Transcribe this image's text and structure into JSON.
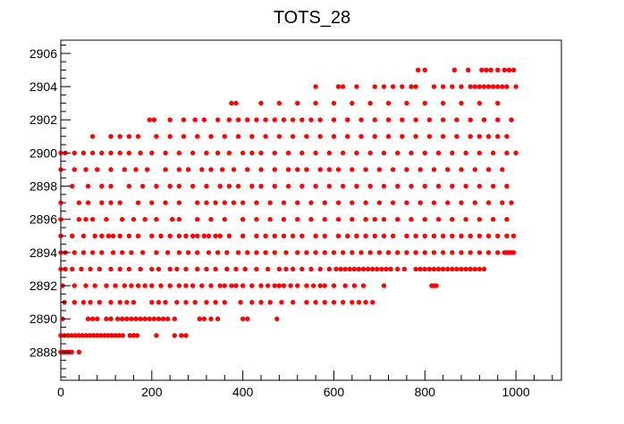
{
  "chart_data": {
    "type": "scatter",
    "title": "TOTS_28",
    "xlabel": "",
    "ylabel": "",
    "xlim": [
      0,
      1100
    ],
    "ylim": [
      2886.3,
      2906.8
    ],
    "grid": false,
    "legend": "none",
    "marker_color": "#ff0000",
    "x_ticks": [
      0,
      200,
      400,
      600,
      800,
      1000
    ],
    "x_tick_labels": [
      "0",
      "200",
      "400",
      "600",
      "800",
      "1000"
    ],
    "y_ticks": [
      2888,
      2890,
      2892,
      2894,
      2896,
      2898,
      2900,
      2902,
      2904,
      2906
    ],
    "y_tick_labels": [
      "2888",
      "2890",
      "2892",
      "2894",
      "2896",
      "2898",
      "2900",
      "2902",
      "2904",
      "2906"
    ],
    "series": [
      {
        "name": "",
        "rows": [
          {
            "y": 2888,
            "x": [
              0,
              4,
              8,
              12,
              16,
              20,
              24,
              40
            ]
          },
          {
            "y": 2889,
            "x": [
              0,
              8,
              16,
              24,
              32,
              40,
              48,
              56,
              64,
              72,
              80,
              88,
              96,
              104,
              112,
              120,
              128,
              136,
              152,
              160,
              168,
              210,
              250,
              265,
              275
            ]
          },
          {
            "y": 2890,
            "x": [
              4,
              60,
              70,
              80,
              100,
              110,
              125,
              135,
              145,
              155,
              165,
              175,
              185,
              195,
              205,
              215,
              225,
              235,
              250,
              305,
              315,
              330,
              345,
              400,
              410,
              475
            ]
          },
          {
            "y": 2891,
            "x": [
              8,
              30,
              50,
              65,
              85,
              110,
              130,
              145,
              160,
              200,
              215,
              230,
              255,
              275,
              295,
              320,
              340,
              360,
              395,
              420,
              440,
              460,
              485,
              510,
              540,
              560,
              580,
              600,
              620,
              640,
              655,
              670,
              685
            ]
          },
          {
            "y": 2892,
            "x": [
              4,
              30,
              55,
              75,
              100,
              120,
              140,
              155,
              170,
              185,
              200,
              220,
              240,
              260,
              275,
              290,
              310,
              330,
              350,
              360,
              375,
              385,
              400,
              420,
              440,
              455,
              470,
              480,
              490,
              505,
              520,
              540,
              555,
              570,
              580,
              600,
              625,
              645,
              665,
              710,
              815,
              820,
              825
            ]
          },
          {
            "y": 2893,
            "x": [
              0,
              10,
              25,
              45,
              65,
              85,
              110,
              130,
              150,
              175,
              200,
              215,
              240,
              255,
              275,
              300,
              320,
              340,
              365,
              385,
              405,
              430,
              455,
              480,
              495,
              510,
              530,
              550,
              570,
              590,
              605,
              615,
              625,
              635,
              645,
              655,
              665,
              675,
              685,
              695,
              705,
              715,
              725,
              740,
              755,
              780,
              790,
              800,
              810,
              820,
              830,
              840,
              850,
              860,
              870,
              880,
              890,
              900,
              910,
              920,
              930
            ]
          },
          {
            "y": 2894,
            "x": [
              0,
              10,
              30,
              50,
              70,
              90,
              115,
              135,
              155,
              180,
              210,
              235,
              260,
              280,
              300,
              325,
              345,
              365,
              390,
              410,
              430,
              450,
              470,
              495,
              520,
              540,
              560,
              580,
              600,
              620,
              640,
              660,
              680,
              700,
              720,
              740,
              760,
              780,
              800,
              820,
              840,
              860,
              880,
              900,
              920,
              940,
              960,
              975,
              980,
              985,
              990,
              995
            ]
          },
          {
            "y": 2895,
            "x": [
              0,
              25,
              50,
              75,
              90,
              105,
              115,
              130,
              150,
              170,
              200,
              220,
              240,
              260,
              275,
              290,
              300,
              315,
              325,
              340,
              350,
              370,
              400,
              430,
              450,
              470,
              490,
              510,
              530,
              560,
              580,
              610,
              630,
              650,
              670,
              690,
              710,
              730,
              760,
              780,
              800,
              820,
              840,
              860,
              880,
              900,
              920,
              940,
              960,
              980,
              995
            ]
          },
          {
            "y": 2896,
            "x": [
              0,
              40,
              55,
              70,
              100,
              135,
              160,
              185,
              210,
              245,
              260,
              300,
              330,
              360,
              400,
              430,
              460,
              490,
              520,
              550,
              580,
              610,
              640,
              670,
              690,
              710,
              740,
              770,
              800,
              830,
              860,
              890,
              920,
              950,
              980
            ]
          },
          {
            "y": 2897,
            "x": [
              0,
              40,
              60,
              90,
              110,
              130,
              170,
              200,
              230,
              260,
              300,
              320,
              340,
              360,
              380,
              400,
              430,
              460,
              490,
              520,
              550,
              580,
              610,
              640,
              670,
              700,
              730,
              760,
              790,
              820,
              850,
              880,
              910,
              940,
              970,
              990
            ]
          },
          {
            "y": 2898,
            "x": [
              25,
              60,
              90,
              110,
              150,
              180,
              210,
              240,
              260,
              290,
              320,
              350,
              370,
              390,
              420,
              440,
              470,
              500,
              530,
              560,
              590,
              620,
              650,
              680,
              710,
              740,
              770,
              800,
              830,
              860,
              890,
              920,
              950,
              980
            ]
          },
          {
            "y": 2899,
            "x": [
              0,
              30,
              55,
              80,
              110,
              140,
              165,
              190,
              230,
              260,
              280,
              310,
              330,
              355,
              380,
              410,
              440,
              470,
              500,
              520,
              540,
              570,
              590,
              610,
              640,
              670,
              700,
              730,
              760,
              790,
              820,
              850,
              880,
              910,
              940,
              970
            ]
          },
          {
            "y": 2900,
            "x": [
              0,
              10,
              30,
              50,
              70,
              90,
              110,
              130,
              150,
              175,
              200,
              230,
              260,
              290,
              320,
              345,
              370,
              400,
              420,
              440,
              470,
              500,
              530,
              560,
              590,
              620,
              650,
              680,
              710,
              740,
              770,
              800,
              830,
              860,
              890,
              920,
              950,
              980,
              1000
            ]
          },
          {
            "y": 2901,
            "x": [
              70,
              110,
              130,
              150,
              170,
              210,
              240,
              270,
              300,
              330,
              360,
              390,
              420,
              450,
              480,
              510,
              540,
              570,
              600,
              630,
              660,
              690,
              720,
              750,
              780,
              810,
              840,
              870,
              900,
              920,
              940,
              960,
              980
            ]
          },
          {
            "y": 2902,
            "x": [
              195,
              205,
              240,
              270,
              295,
              315,
              345,
              370,
              390,
              410,
              430,
              450,
              470,
              490,
              510,
              530,
              550,
              570,
              600,
              630,
              660,
              690,
              720,
              750,
              780,
              810,
              840,
              870,
              900,
              930,
              960,
              990
            ]
          },
          {
            "y": 2903,
            "x": [
              375,
              385,
              440,
              480,
              520,
              560,
              600,
              640,
              680,
              720,
              760,
              800,
              840,
              880,
              920,
              960
            ]
          },
          {
            "y": 2904,
            "x": [
              560,
              610,
              620,
              650,
              690,
              710,
              730,
              750,
              770,
              780,
              820,
              840,
              860,
              880,
              900,
              910,
              920,
              930,
              940,
              950,
              960,
              970,
              980,
              1000
            ]
          },
          {
            "y": 2905,
            "x": [
              785,
              800,
              865,
              895,
              925,
              935,
              945,
              960,
              975,
              985,
              995
            ]
          }
        ]
      }
    ]
  }
}
